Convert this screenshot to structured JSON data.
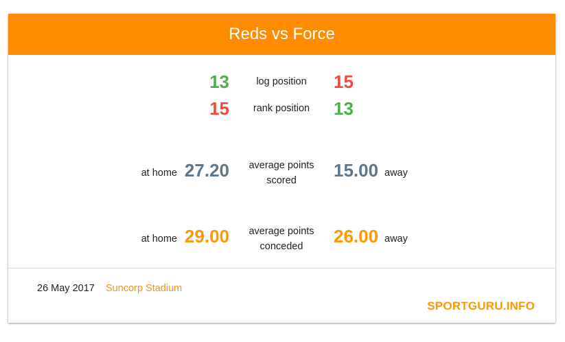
{
  "header": {
    "title": "Reds vs Force"
  },
  "log_position": {
    "label": "log position",
    "home": "13",
    "away": "15"
  },
  "rank_position": {
    "label": "rank position",
    "home": "15",
    "away": "13"
  },
  "points_scored": {
    "label_line1": "average points",
    "label_line2": "scored",
    "home_prefix": "at home",
    "home_value": "27.20",
    "away_value": "15.00",
    "away_suffix": "away"
  },
  "points_conceded": {
    "label_line1": "average points",
    "label_line2": "conceded",
    "home_prefix": "at home",
    "home_value": "29.00",
    "away_value": "26.00",
    "away_suffix": "away"
  },
  "footer": {
    "date": "26 May 2017",
    "venue": "Suncorp Stadium",
    "brand": "SPORTGURU.INFO"
  },
  "colors": {
    "header": "#ff8c00",
    "better": "#4caf50",
    "worse": "#f04a3a",
    "scored": "#5e7689",
    "conceded": "#ff9800"
  }
}
